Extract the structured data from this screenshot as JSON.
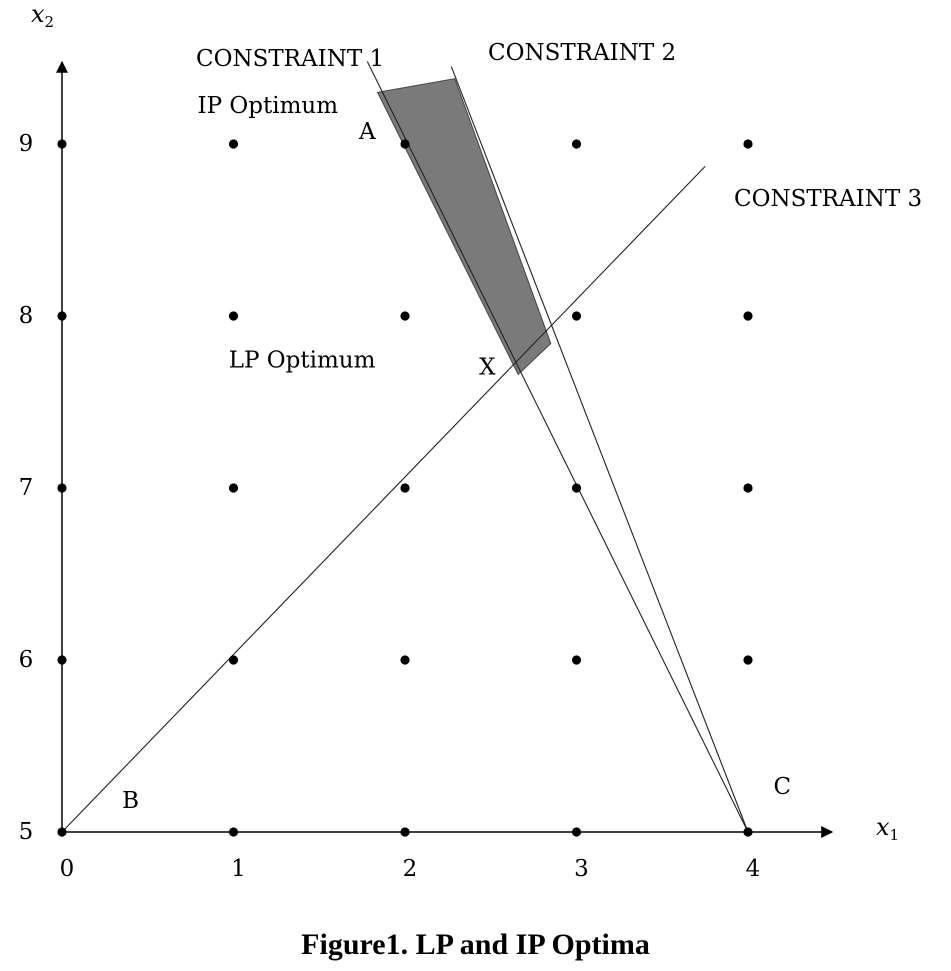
{
  "caption": "Figure1. LP and IP Optima",
  "chart_data": {
    "type": "scatter",
    "title": "Figure1. LP and IP Optima",
    "xlabel": "x",
    "xlabel_sub": "1",
    "ylabel": "x",
    "ylabel_sub": "2",
    "xlim": [
      0,
      4.5
    ],
    "ylim": [
      5,
      9.4
    ],
    "x_ticks": [
      "0",
      "1",
      "2",
      "3",
      "4"
    ],
    "y_ticks": [
      "5",
      "6",
      "7",
      "8",
      "9"
    ],
    "integer_points": {
      "x": [
        0,
        1,
        2,
        3,
        4
      ],
      "y": [
        5,
        6,
        7,
        8,
        9
      ]
    },
    "constraints": [
      {
        "name": "CONSTRAINT 1",
        "from": [
          4,
          5
        ],
        "to": [
          1.78,
          9.48
        ]
      },
      {
        "name": "CONSTRAINT 2",
        "from": [
          4,
          5
        ],
        "to": [
          2.27,
          9.45
        ]
      },
      {
        "name": "CONSTRAINT 3",
        "from": [
          0,
          5
        ],
        "to": [
          3.75,
          8.87
        ]
      }
    ],
    "shaded_region": [
      [
        1.84,
        9.3
      ],
      [
        2.29,
        9.38
      ],
      [
        2.85,
        7.84
      ],
      [
        2.66,
        7.66
      ]
    ],
    "annotations": [
      {
        "text": "IP Optimum",
        "x": 1.2,
        "y": 9.18
      },
      {
        "text": "A",
        "x": 1.78,
        "y": 9.03
      },
      {
        "text": "LP Optimum",
        "x": 1.4,
        "y": 7.7
      },
      {
        "text": "X",
        "x": 2.48,
        "y": 7.66
      },
      {
        "text": "B",
        "x": 0.4,
        "y": 5.14
      },
      {
        "text": "C",
        "x": 4.2,
        "y": 5.22
      }
    ]
  }
}
